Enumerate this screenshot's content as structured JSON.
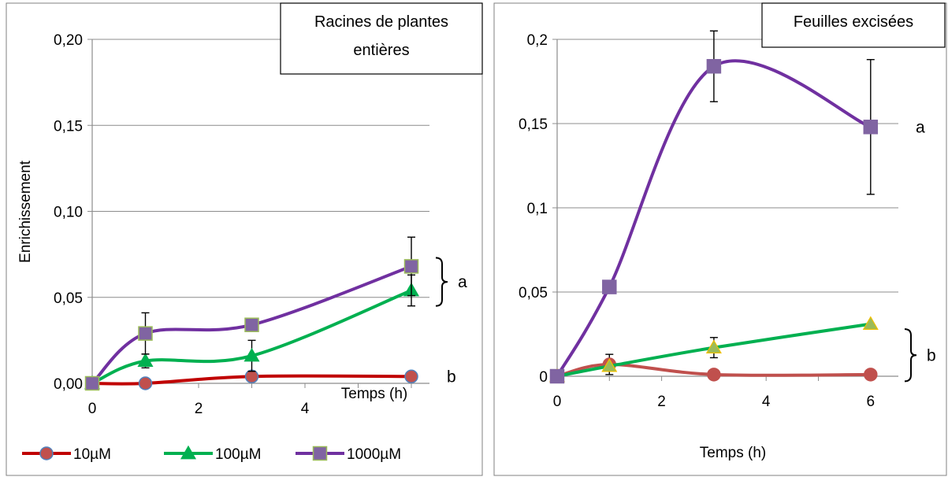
{
  "chart_data": [
    {
      "type": "line",
      "title": "Racines de plantes entières",
      "title_lines": [
        "Racines de plantes",
        "entières"
      ],
      "xlabel": "Temps (h)",
      "ylabel": "Enrichissement",
      "xlim": [
        0,
        6
      ],
      "ylim": [
        0,
        0.2
      ],
      "x_ticks": [
        0,
        2,
        4
      ],
      "x_tick_labels": [
        "0",
        "2",
        "4"
      ],
      "y_ticks": [
        0,
        0.05,
        0.1,
        0.15,
        0.2
      ],
      "y_tick_labels": [
        "0,00",
        "0,05",
        "0,10",
        "0,15",
        "0,20"
      ],
      "grid": "horizontal",
      "legend": "bottom",
      "series": [
        {
          "name": "10µM",
          "color": "#c0504d",
          "line_color": "#c00000",
          "marker": "circle",
          "marker_fill": "#c0504d",
          "marker_stroke": "#4f81bd",
          "x": [
            0,
            1,
            3,
            6
          ],
          "y": [
            0.0,
            0.0,
            0.004,
            0.004
          ],
          "error": [
            0,
            0,
            0.001,
            0
          ]
        },
        {
          "name": "100µM",
          "color": "#00b050",
          "line_color": "#00b050",
          "marker": "triangle",
          "marker_fill": "#00b050",
          "marker_stroke": "#00b050",
          "x": [
            0,
            1,
            3,
            6
          ],
          "y": [
            0.0,
            0.013,
            0.016,
            0.054
          ],
          "error": [
            0,
            0.004,
            0.009,
            0.009
          ]
        },
        {
          "name": "1000µM",
          "color": "#7030a0",
          "line_color": "#7030a0",
          "marker": "square",
          "marker_fill": "#8064a2",
          "marker_stroke": "#9bbb59",
          "x": [
            0,
            1,
            3,
            6
          ],
          "y": [
            0.0,
            0.029,
            0.034,
            0.068
          ],
          "error": [
            0,
            0.012,
            0,
            0.017
          ]
        }
      ],
      "annotations": [
        {
          "text": "a",
          "bracket": true,
          "y_from": 0.045,
          "y_to": 0.073
        },
        {
          "text": "b",
          "bracket": false,
          "y_at": 0.004
        }
      ]
    },
    {
      "type": "line",
      "title": "Feuilles excisées",
      "xlabel": "Temps (h)",
      "ylabel": "",
      "xlim": [
        0,
        6.5
      ],
      "ylim": [
        0,
        0.2
      ],
      "x_ticks": [
        0,
        2,
        4,
        6
      ],
      "x_tick_labels": [
        "0",
        "2",
        "4",
        "6"
      ],
      "y_ticks": [
        0,
        0.05,
        0.1,
        0.15,
        0.2
      ],
      "y_tick_labels": [
        "0",
        "0,05",
        "0,1",
        "0,15",
        "0,2"
      ],
      "grid": "horizontal",
      "legend": "none",
      "series": [
        {
          "name": "10µM",
          "color": "#c0504d",
          "line_color": "#c0504d",
          "marker": "circle",
          "marker_fill": "#c0504d",
          "marker_stroke": "#c0504d",
          "x": [
            0,
            1,
            3,
            6
          ],
          "y": [
            0.0,
            0.007,
            0.001,
            0.001
          ],
          "error": [
            0,
            0.006,
            0,
            0
          ]
        },
        {
          "name": "100µM",
          "color": "#00b050",
          "line_color": "#00b050",
          "marker": "triangle",
          "marker_fill": "#9bbb59",
          "marker_stroke": "#f0c000",
          "x": [
            0,
            1,
            3,
            6
          ],
          "y": [
            0.0,
            0.006,
            0.017,
            0.031
          ],
          "error": [
            0,
            0,
            0.006,
            0
          ]
        },
        {
          "name": "1000µM",
          "color": "#7030a0",
          "line_color": "#7030a0",
          "marker": "square",
          "marker_fill": "#8064a2",
          "marker_stroke": "#8064a2",
          "x": [
            0,
            1,
            3,
            6
          ],
          "y": [
            0.0,
            0.053,
            0.184,
            0.148
          ],
          "error": [
            0,
            0,
            0.021,
            0.04
          ]
        }
      ],
      "annotations": [
        {
          "text": "a",
          "bracket": false,
          "y_at": 0.148
        },
        {
          "text": "b",
          "bracket": true,
          "y_from": -0.003,
          "y_to": 0.028
        }
      ]
    }
  ]
}
